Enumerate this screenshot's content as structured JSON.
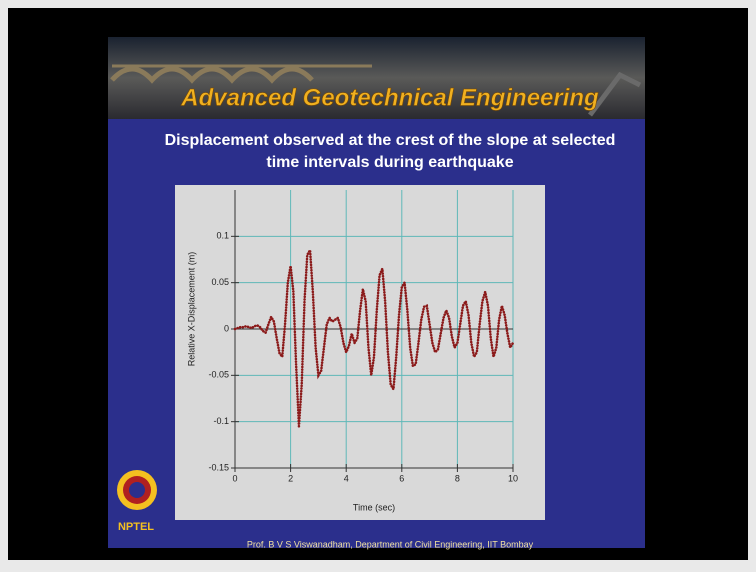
{
  "header": {
    "title": "Advanced Geotechnical Engineering"
  },
  "slide": {
    "heading_lines": [
      "Displacement observed at the crest of the slope at selected",
      "time intervals during earthquake"
    ]
  },
  "chart_data": {
    "type": "line",
    "x_label": "Time (sec)",
    "y_label": "Relative X-Displacement (m)",
    "x": [
      0,
      0.1,
      0.2,
      0.3,
      0.4,
      0.5,
      0.6,
      0.7,
      0.8,
      0.9,
      1,
      1.1,
      1.2,
      1.3,
      1.4,
      1.5,
      1.6,
      1.7,
      1.8,
      1.9,
      2,
      2.1,
      2.2,
      2.3,
      2.4,
      2.5,
      2.6,
      2.7,
      2.8,
      2.9,
      3,
      3.1,
      3.2,
      3.3,
      3.4,
      3.5,
      3.6,
      3.7,
      3.8,
      3.9,
      4,
      4.1,
      4.2,
      4.3,
      4.4,
      4.5,
      4.6,
      4.7,
      4.8,
      4.9,
      5,
      5.1,
      5.2,
      5.3,
      5.4,
      5.5,
      5.6,
      5.7,
      5.8,
      5.9,
      6,
      6.1,
      6.2,
      6.3,
      6.4,
      6.5,
      6.6,
      6.7,
      6.8,
      6.9,
      7,
      7.1,
      7.2,
      7.3,
      7.4,
      7.5,
      7.6,
      7.7,
      7.8,
      7.9,
      8,
      8.1,
      8.2,
      8.3,
      8.4,
      8.5,
      8.6,
      8.7,
      8.8,
      8.9,
      9,
      9.1,
      9.2,
      9.3,
      9.4,
      9.5,
      9.6,
      9.7,
      9.8,
      9.9,
      10
    ],
    "values": [
      0,
      0.001,
      0.002,
      0.002,
      0.003,
      0.002,
      0.001,
      0.003,
      0.004,
      0.002,
      -0.002,
      -0.004,
      0.005,
      0.013,
      0.008,
      -0.01,
      -0.026,
      -0.03,
      0.005,
      0.05,
      0.068,
      0.04,
      -0.04,
      -0.105,
      -0.06,
      0.03,
      0.08,
      0.085,
      0.04,
      -0.02,
      -0.05,
      -0.045,
      -0.02,
      0.005,
      0.012,
      0.008,
      0.01,
      0.012,
      0.002,
      -0.015,
      -0.025,
      -0.018,
      -0.005,
      -0.015,
      -0.01,
      0.02,
      0.043,
      0.03,
      -0.02,
      -0.05,
      -0.03,
      0.02,
      0.058,
      0.065,
      0.03,
      -0.025,
      -0.06,
      -0.065,
      -0.03,
      0.015,
      0.045,
      0.05,
      0.02,
      -0.02,
      -0.04,
      -0.038,
      -0.015,
      0.01,
      0.024,
      0.025,
      0.005,
      -0.015,
      -0.025,
      -0.022,
      -0.005,
      0.012,
      0.02,
      0.012,
      -0.008,
      -0.02,
      -0.015,
      0.005,
      0.025,
      0.03,
      0.015,
      -0.015,
      -0.03,
      -0.025,
      0.005,
      0.03,
      0.04,
      0.025,
      -0.01,
      -0.03,
      -0.02,
      0.01,
      0.025,
      0.015,
      -0.005,
      -0.02,
      -0.015
    ],
    "color": "#8b1a1a",
    "xlim": [
      0,
      10
    ],
    "xticks": [
      0,
      2,
      4,
      6,
      8,
      10
    ],
    "ylim": [
      -0.15,
      0.15
    ],
    "yticks": [
      -0.15,
      -0.1,
      -0.05,
      0,
      0.05,
      0.1
    ],
    "grid": true
  },
  "footer": {
    "logo": "NPTEL",
    "credit": "Prof. B V S Viswanadham, Department of Civil Engineering, IIT Bombay"
  }
}
